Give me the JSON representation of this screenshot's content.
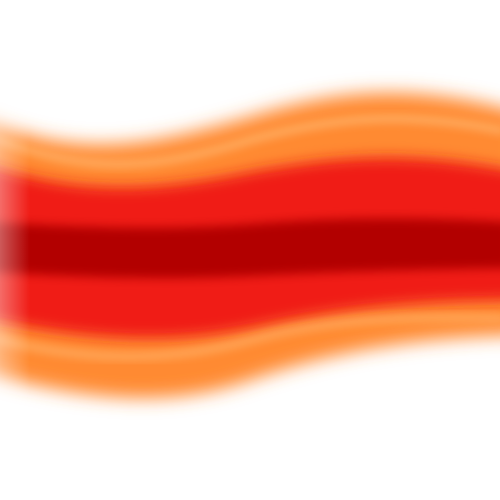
{
  "artwork": {
    "background_color": "#ffffff",
    "colors": {
      "outer": "#ff8a33",
      "middle": "#f01f14",
      "inner": "#b20000",
      "highlight": "#ffb36b"
    }
  }
}
